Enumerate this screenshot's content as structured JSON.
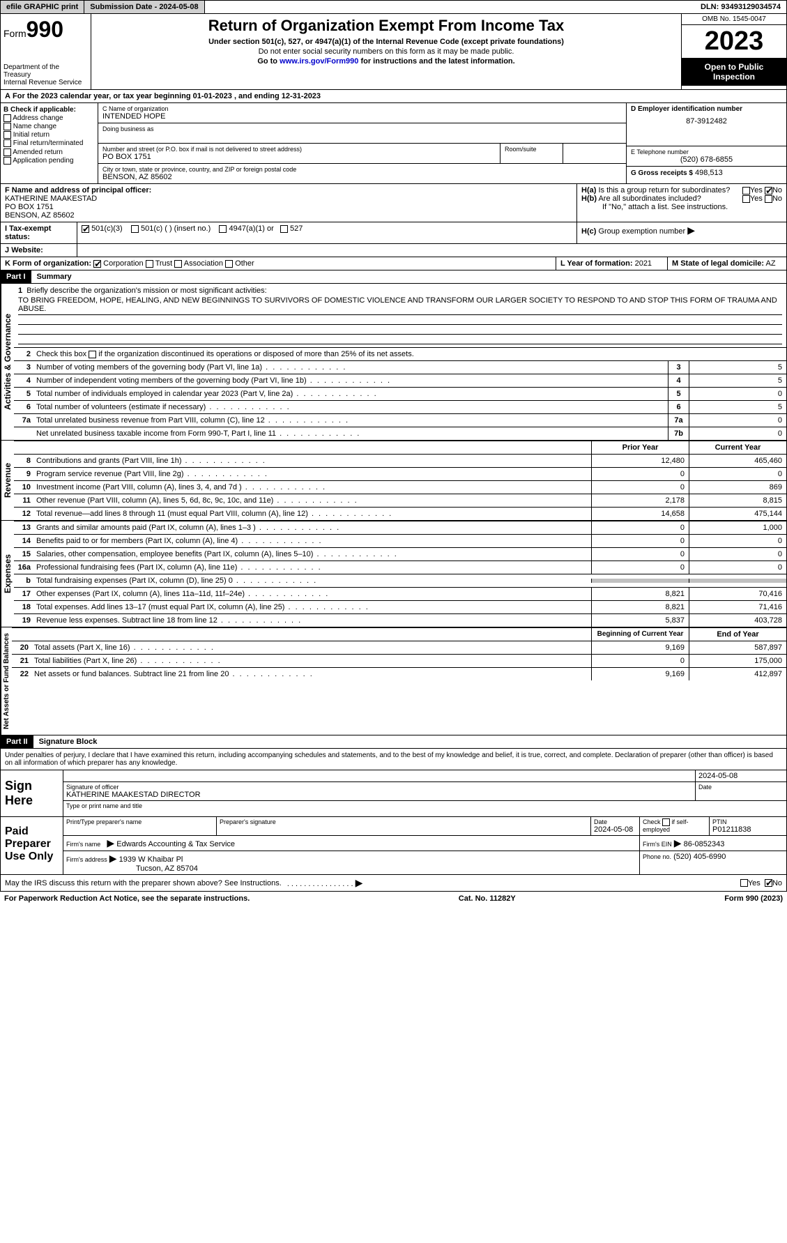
{
  "header": {
    "efile": "efile GRAPHIC print",
    "submission": "Submission Date - 2024-05-08",
    "dln": "DLN: 93493129034574"
  },
  "form": {
    "prefix": "Form",
    "number": "990",
    "dept": "Department of the Treasury",
    "irs": "Internal Revenue Service",
    "title": "Return of Organization Exempt From Income Tax",
    "sub1": "Under section 501(c), 527, or 4947(a)(1) of the Internal Revenue Code (except private foundations)",
    "sub2": "Do not enter social security numbers on this form as it may be made public.",
    "sub3": "Go to www.irs.gov/Form990 for instructions and the latest information.",
    "omb": "OMB No. 1545-0047",
    "year": "2023",
    "open": "Open to Public Inspection"
  },
  "line_a": "For the 2023 calendar year, or tax year beginning 01-01-2023    , and ending 12-31-2023",
  "box_b": {
    "title": "B Check if applicable:",
    "items": [
      "Address change",
      "Name change",
      "Initial return",
      "Final return/terminated",
      "Amended return",
      "Application pending"
    ]
  },
  "box_c": {
    "label_name": "C Name of organization",
    "name": "INTENDED HOPE",
    "dba_label": "Doing business as",
    "addr_label": "Number and street (or P.O. box if mail is not delivered to street address)",
    "room_label": "Room/suite",
    "addr": "PO BOX 1751",
    "city_label": "City or town, state or province, country, and ZIP or foreign postal code",
    "city": "BENSON, AZ  85602"
  },
  "box_d": {
    "label": "D Employer identification number",
    "val": "87-3912482"
  },
  "box_e": {
    "label": "E Telephone number",
    "val": "(520) 678-6855"
  },
  "box_g": {
    "label": "G Gross receipts $",
    "val": "498,513"
  },
  "box_f": {
    "label": "F  Name and address of principal officer:",
    "name": "KATHERINE MAAKESTAD",
    "addr": "PO BOX 1751",
    "city": "BENSON, AZ  85602"
  },
  "box_h": {
    "a": "Is this a group return for subordinates?",
    "b": "Are all subordinates included?",
    "b_note": "If \"No,\" attach a list. See instructions.",
    "c": "Group exemption number"
  },
  "box_i": {
    "label": "Tax-exempt status:",
    "opts": [
      "501(c)(3)",
      "501(c) (  ) (insert no.)",
      "4947(a)(1) or",
      "527"
    ]
  },
  "box_j": {
    "label": "Website:"
  },
  "box_k": {
    "label": "K Form of organization:",
    "opts": [
      "Corporation",
      "Trust",
      "Association",
      "Other"
    ]
  },
  "box_l": {
    "label": "L Year of formation:",
    "val": "2021"
  },
  "box_m": {
    "label": "M State of legal domicile:",
    "val": "AZ"
  },
  "parts": {
    "p1": "Part I",
    "p1t": "Summary",
    "p2": "Part II",
    "p2t": "Signature Block"
  },
  "sides": {
    "ag": "Activities & Governance",
    "rev": "Revenue",
    "exp": "Expenses",
    "na": "Net Assets or Fund Balances"
  },
  "summary": {
    "l1_label": "Briefly describe the organization's mission or most significant activities:",
    "l1_text": "TO BRING FREEDOM, HOPE, HEALING, AND NEW BEGINNINGS TO SURVIVORS OF DOMESTIC VIOLENCE AND TRANSFORM OUR LARGER SOCIETY TO RESPOND TO AND STOP THIS FORM OF TRAUMA AND ABUSE.",
    "l2": "Check this box      if the organization discontinued its operations or disposed of more than 25% of its net assets.",
    "rows_ag": [
      {
        "n": "3",
        "d": "Number of voting members of the governing body (Part VI, line 1a)",
        "box": "3",
        "v": "5"
      },
      {
        "n": "4",
        "d": "Number of independent voting members of the governing body (Part VI, line 1b)",
        "box": "4",
        "v": "5"
      },
      {
        "n": "5",
        "d": "Total number of individuals employed in calendar year 2023 (Part V, line 2a)",
        "box": "5",
        "v": "0"
      },
      {
        "n": "6",
        "d": "Total number of volunteers (estimate if necessary)",
        "box": "6",
        "v": "5"
      },
      {
        "n": "7a",
        "d": "Total unrelated business revenue from Part VIII, column (C), line 12",
        "box": "7a",
        "v": "0"
      },
      {
        "n": "",
        "d": "Net unrelated business taxable income from Form 990-T, Part I, line 11",
        "box": "7b",
        "v": "0"
      }
    ],
    "hdr_prior": "Prior Year",
    "hdr_current": "Current Year",
    "rows_rev": [
      {
        "n": "8",
        "d": "Contributions and grants (Part VIII, line 1h)",
        "p": "12,480",
        "c": "465,460"
      },
      {
        "n": "9",
        "d": "Program service revenue (Part VIII, line 2g)",
        "p": "0",
        "c": "0"
      },
      {
        "n": "10",
        "d": "Investment income (Part VIII, column (A), lines 3, 4, and 7d )",
        "p": "0",
        "c": "869"
      },
      {
        "n": "11",
        "d": "Other revenue (Part VIII, column (A), lines 5, 6d, 8c, 9c, 10c, and 11e)",
        "p": "2,178",
        "c": "8,815"
      },
      {
        "n": "12",
        "d": "Total revenue—add lines 8 through 11 (must equal Part VIII, column (A), line 12)",
        "p": "14,658",
        "c": "475,144"
      }
    ],
    "rows_exp": [
      {
        "n": "13",
        "d": "Grants and similar amounts paid (Part IX, column (A), lines 1–3 )",
        "p": "0",
        "c": "1,000"
      },
      {
        "n": "14",
        "d": "Benefits paid to or for members (Part IX, column (A), line 4)",
        "p": "0",
        "c": "0"
      },
      {
        "n": "15",
        "d": "Salaries, other compensation, employee benefits (Part IX, column (A), lines 5–10)",
        "p": "0",
        "c": "0"
      },
      {
        "n": "16a",
        "d": "Professional fundraising fees (Part IX, column (A), line 11e)",
        "p": "0",
        "c": "0"
      },
      {
        "n": "b",
        "d": "Total fundraising expenses (Part IX, column (D), line 25) 0",
        "p": "",
        "c": "",
        "grey": true
      },
      {
        "n": "17",
        "d": "Other expenses (Part IX, column (A), lines 11a–11d, 11f–24e)",
        "p": "8,821",
        "c": "70,416"
      },
      {
        "n": "18",
        "d": "Total expenses. Add lines 13–17 (must equal Part IX, column (A), line 25)",
        "p": "8,821",
        "c": "71,416"
      },
      {
        "n": "19",
        "d": "Revenue less expenses. Subtract line 18 from line 12",
        "p": "5,837",
        "c": "403,728"
      }
    ],
    "hdr_begin": "Beginning of Current Year",
    "hdr_end": "End of Year",
    "rows_na": [
      {
        "n": "20",
        "d": "Total assets (Part X, line 16)",
        "p": "9,169",
        "c": "587,897"
      },
      {
        "n": "21",
        "d": "Total liabilities (Part X, line 26)",
        "p": "0",
        "c": "175,000"
      },
      {
        "n": "22",
        "d": "Net assets or fund balances. Subtract line 21 from line 20",
        "p": "9,169",
        "c": "412,897"
      }
    ]
  },
  "sig": {
    "decl": "Under penalties of perjury, I declare that I have examined this return, including accompanying schedules and statements, and to the best of my knowledge and belief, it is true, correct, and complete. Declaration of preparer (other than officer) is based on all information of which preparer has any knowledge.",
    "sign_here": "Sign Here",
    "sig_label": "Signature of officer",
    "date": "2024-05-08",
    "date_label": "Date",
    "officer": "KATHERINE MAAKESTAD  DIRECTOR",
    "type_label": "Type or print name and title",
    "paid": "Paid Preparer Use Only",
    "prep_name_label": "Print/Type preparer's name",
    "prep_sig_label": "Preparer's signature",
    "prep_date": "2024-05-08",
    "check_self": "Check      if self-employed",
    "ptin_label": "PTIN",
    "ptin": "P01211838",
    "firm_name_label": "Firm's name",
    "firm_name": "Edwards Accounting & Tax Service",
    "firm_ein_label": "Firm's EIN",
    "firm_ein": "86-0852343",
    "firm_addr_label": "Firm's address",
    "firm_addr1": "1939 W Khaibar Pl",
    "firm_addr2": "Tucson, AZ  85704",
    "phone_label": "Phone no.",
    "phone": "(520) 405-6990",
    "discuss": "May the IRS discuss this return with the preparer shown above? See Instructions."
  },
  "footer": {
    "pra": "For Paperwork Reduction Act Notice, see the separate instructions.",
    "cat": "Cat. No. 11282Y",
    "form": "Form 990 (2023)"
  },
  "labels": {
    "yes": "Yes",
    "no": "No"
  }
}
